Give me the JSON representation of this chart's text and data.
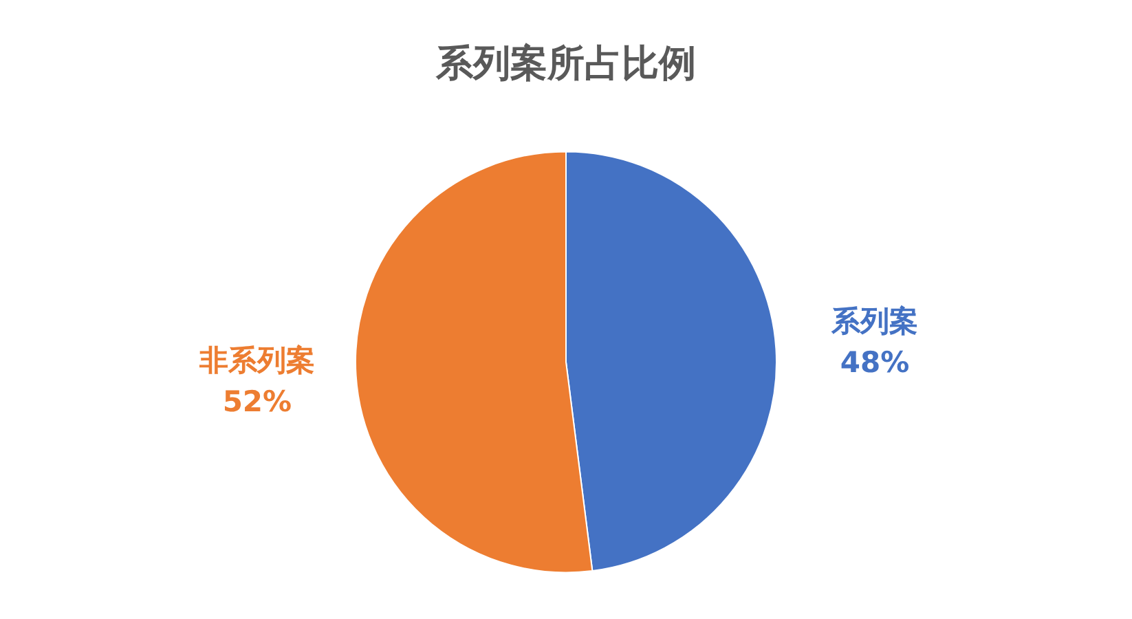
{
  "chart_data": {
    "type": "pie",
    "title": "系列案所占比例",
    "categories": [
      "系列案",
      "非系列案"
    ],
    "values": [
      48,
      52
    ],
    "colors": [
      "#4472c4",
      "#ed7d31"
    ],
    "value_labels": [
      "48%",
      "52%"
    ],
    "legend": false
  }
}
